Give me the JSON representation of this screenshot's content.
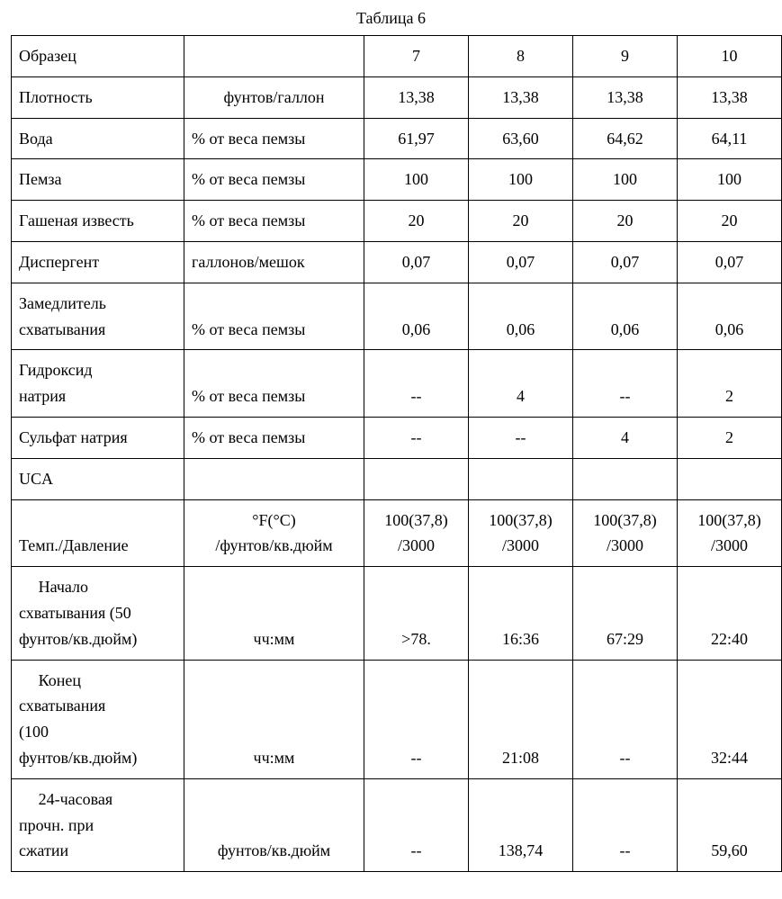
{
  "caption": "Таблица 6",
  "table": {
    "columns": [
      "c0",
      "c1",
      "c2",
      "c3",
      "c4",
      "c5"
    ],
    "rows": [
      {
        "label": "Образец",
        "unit": "",
        "unit_align": "center",
        "vals": [
          "7",
          "8",
          "9",
          "10"
        ]
      },
      {
        "label": "Плотность",
        "unit": "фунтов/галлон",
        "unit_align": "center",
        "vals": [
          "13,38",
          "13,38",
          "13,38",
          "13,38"
        ]
      },
      {
        "label": "Вода",
        "unit": "% от веса пемзы",
        "unit_align": "left",
        "vals": [
          "61,97",
          "63,60",
          "64,62",
          "64,11"
        ]
      },
      {
        "label": "Пемза",
        "unit": "% от веса пемзы",
        "unit_align": "left",
        "vals": [
          "100",
          "100",
          "100",
          "100"
        ]
      },
      {
        "label": "Гашеная известь",
        "unit": "% от веса пемзы",
        "unit_align": "left",
        "vals": [
          "20",
          "20",
          "20",
          "20"
        ]
      },
      {
        "label": "Диспергент",
        "unit": "галлонов/мешок",
        "unit_align": "left",
        "vals": [
          "0,07",
          "0,07",
          "0,07",
          "0,07"
        ]
      },
      {
        "label": "Замедлитель\nсхватывания",
        "unit": "% от веса пемзы",
        "unit_align": "left",
        "vals": [
          "0,06",
          "0,06",
          "0,06",
          "0,06"
        ]
      },
      {
        "label": "Гидроксид\nнатрия",
        "unit": "% от веса пемзы",
        "unit_align": "left",
        "vals": [
          "--",
          "4",
          "--",
          "2"
        ]
      },
      {
        "label": "Сульфат натрия",
        "unit": "% от веса пемзы",
        "unit_align": "left",
        "vals": [
          "--",
          "--",
          "4",
          "2"
        ]
      },
      {
        "label": "UCA",
        "unit": "",
        "unit_align": "center",
        "vals": [
          "",
          "",
          "",
          ""
        ]
      },
      {
        "label": "\nТемп./Давление",
        "unit": "°F(°C)\n/фунтов/кв.дюйм",
        "unit_align": "center",
        "vals": [
          "100(37,8)\n/3000",
          "100(37,8)\n/3000",
          "100(37,8)\n/3000",
          "100(37,8)\n/3000"
        ]
      },
      {
        "label": "Начало\nсхватывания (50\nфунтов/кв.дюйм)",
        "label_indent": true,
        "unit": "чч:мм",
        "unit_align": "center",
        "vals": [
          ">78.",
          "16:36",
          "67:29",
          "22:40"
        ]
      },
      {
        "label": "Конец\nсхватывания\n(100\nфунтов/кв.дюйм)",
        "label_indent": true,
        "unit": "чч:мм",
        "unit_align": "center",
        "vals": [
          "--",
          "21:08",
          "--",
          "32:44"
        ]
      },
      {
        "label": "24-часовая\nпрочн. при\nсжатии",
        "label_indent": true,
        "unit": "фунтов/кв.дюйм",
        "unit_align": "center",
        "vals": [
          "--",
          "138,74",
          "--",
          "59,60"
        ]
      }
    ]
  },
  "style": {
    "background_color": "#ffffff",
    "text_color": "#000000",
    "border_color": "#000000",
    "font_family": "Times New Roman",
    "caption_fontsize": 18,
    "cell_fontsize": 18
  }
}
